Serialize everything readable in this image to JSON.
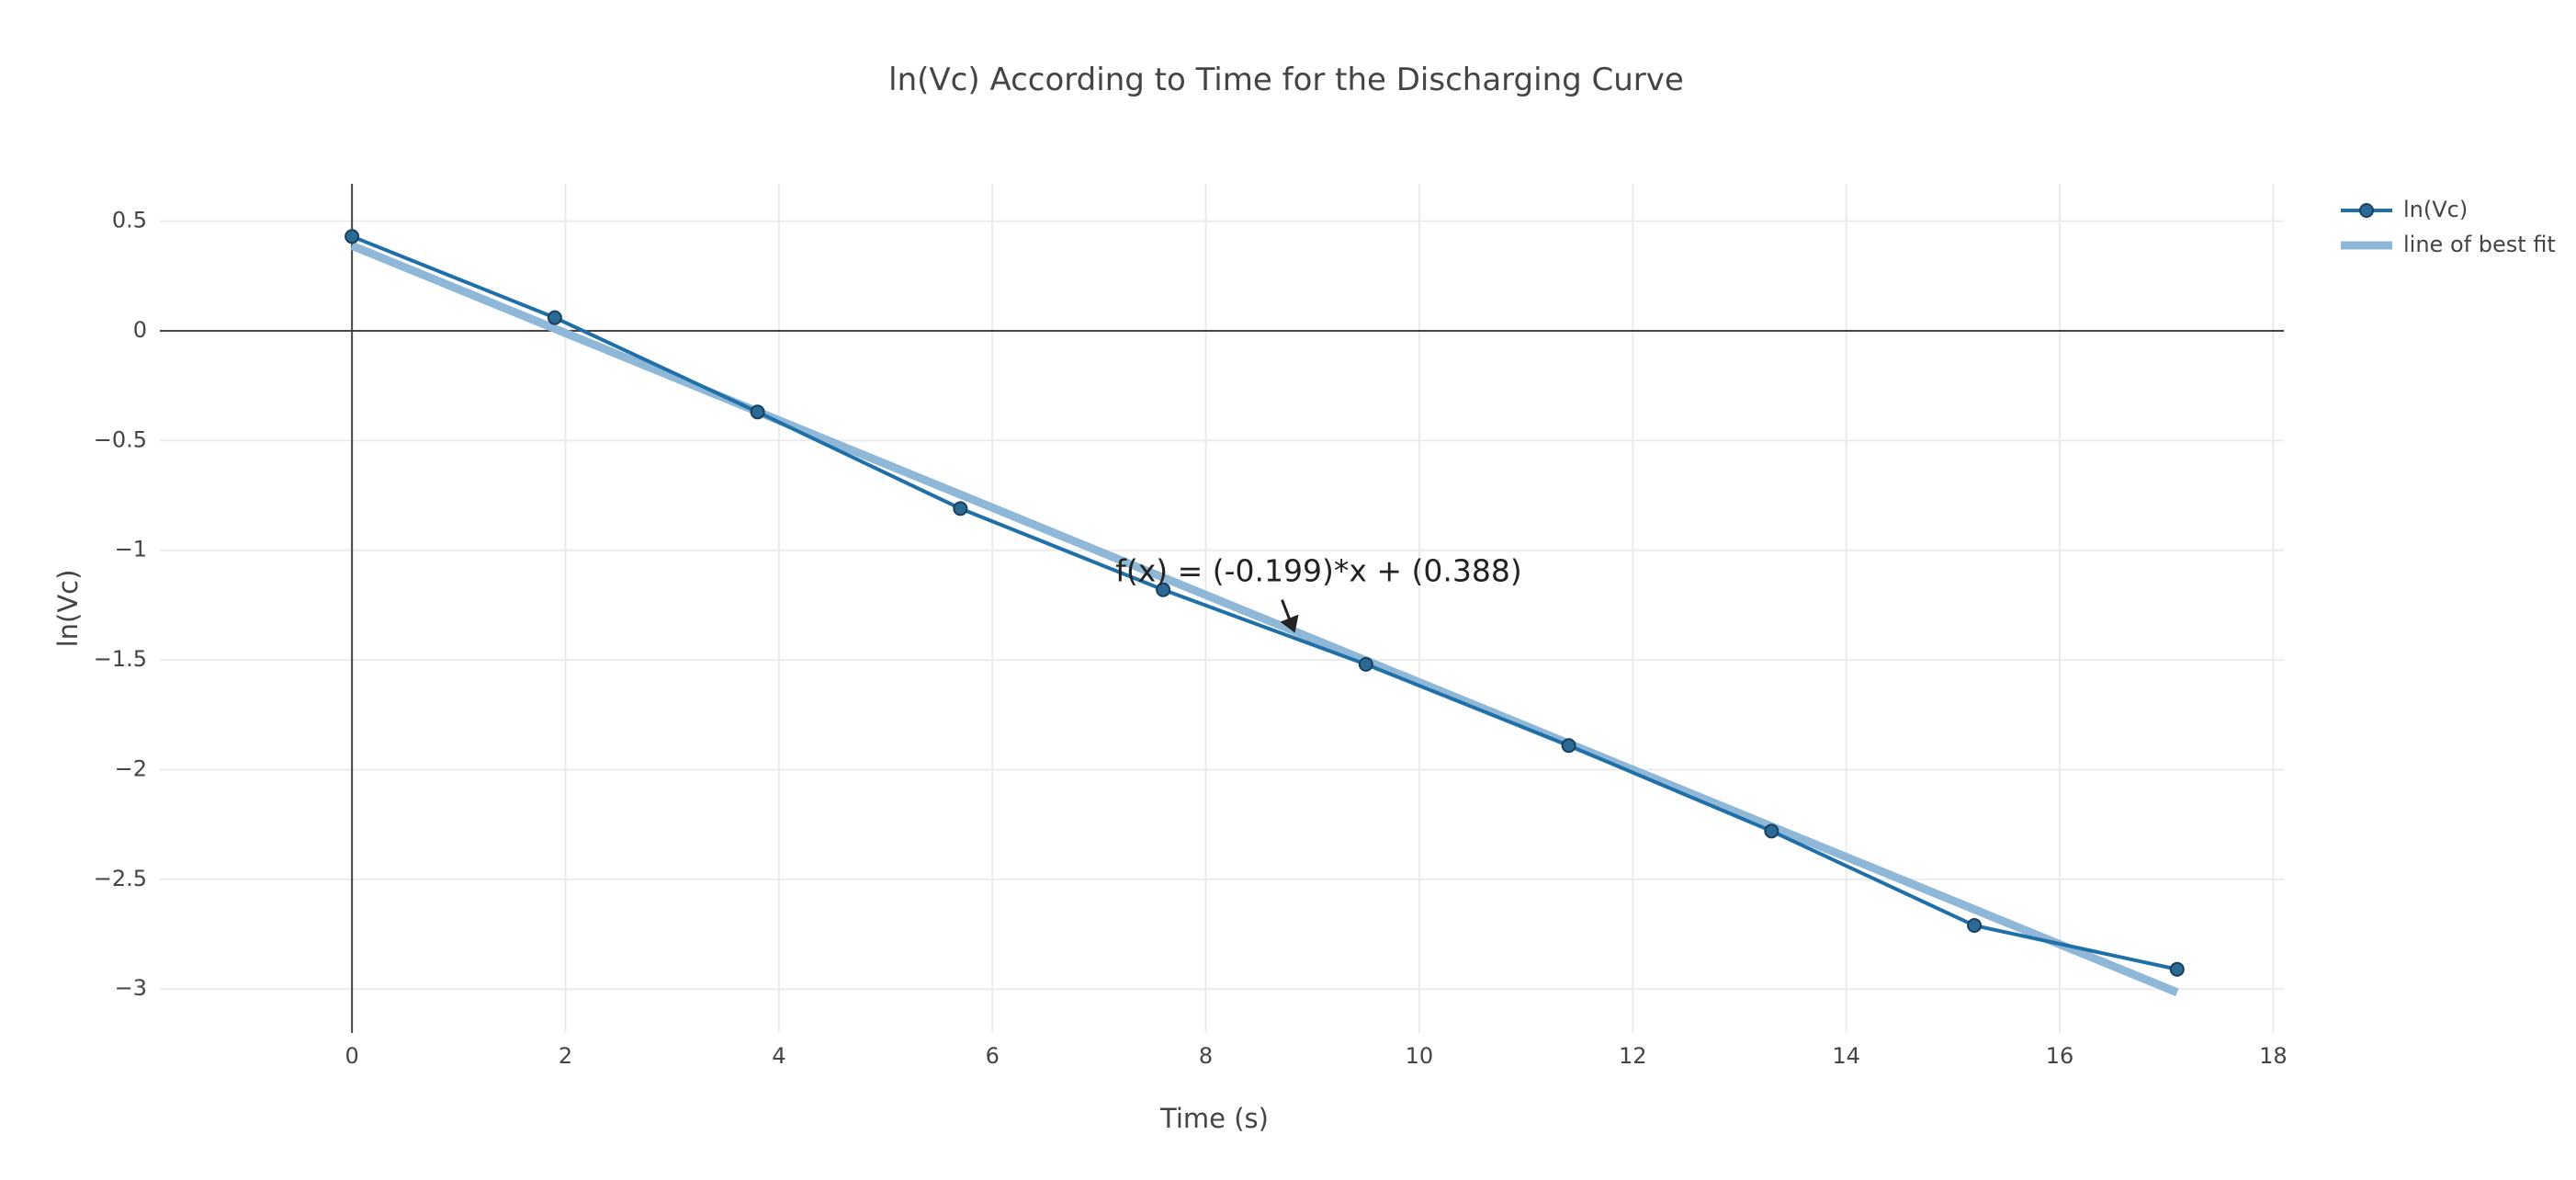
{
  "chart_data": {
    "type": "line",
    "title": "ln(Vc) According to Time for the Discharging Curve",
    "xlabel": "Time (s)",
    "ylabel": "ln(Vc)",
    "xlim": [
      -1.8,
      18.1
    ],
    "ylim": [
      -3.2,
      0.67
    ],
    "xticks": [
      0,
      2,
      4,
      6,
      8,
      10,
      12,
      14,
      16,
      18
    ],
    "xtick_labels": [
      "0",
      "2",
      "4",
      "6",
      "8",
      "10",
      "12",
      "14",
      "16",
      "18"
    ],
    "yticks": [
      0.5,
      0,
      -0.5,
      -1,
      -1.5,
      -2,
      -2.5,
      -3
    ],
    "ytick_labels": [
      "0.5",
      "0",
      "−0.5",
      "−1",
      "−1.5",
      "−2",
      "−2.5",
      "−3"
    ],
    "grid": true,
    "legend_position": "top-right",
    "series": [
      {
        "name": "ln(Vc)",
        "mode": "lines+markers",
        "color": "#1f6fa8",
        "x": [
          0,
          1.9,
          3.8,
          5.7,
          7.6,
          9.5,
          11.4,
          13.3,
          15.2,
          17.1
        ],
        "y": [
          0.43,
          0.06,
          -0.37,
          -0.81,
          -1.18,
          -1.52,
          -1.89,
          -2.28,
          -2.71,
          -2.91
        ]
      },
      {
        "name": "line of best fit",
        "mode": "lines",
        "color": "#8fb8d8",
        "x": [
          0,
          17.1
        ],
        "y": [
          0.388,
          -3.0149
        ]
      }
    ],
    "annotation": {
      "text": "f(x) = (-0.199)*x + (0.388)",
      "x": 8.8,
      "y": -1.36
    }
  }
}
